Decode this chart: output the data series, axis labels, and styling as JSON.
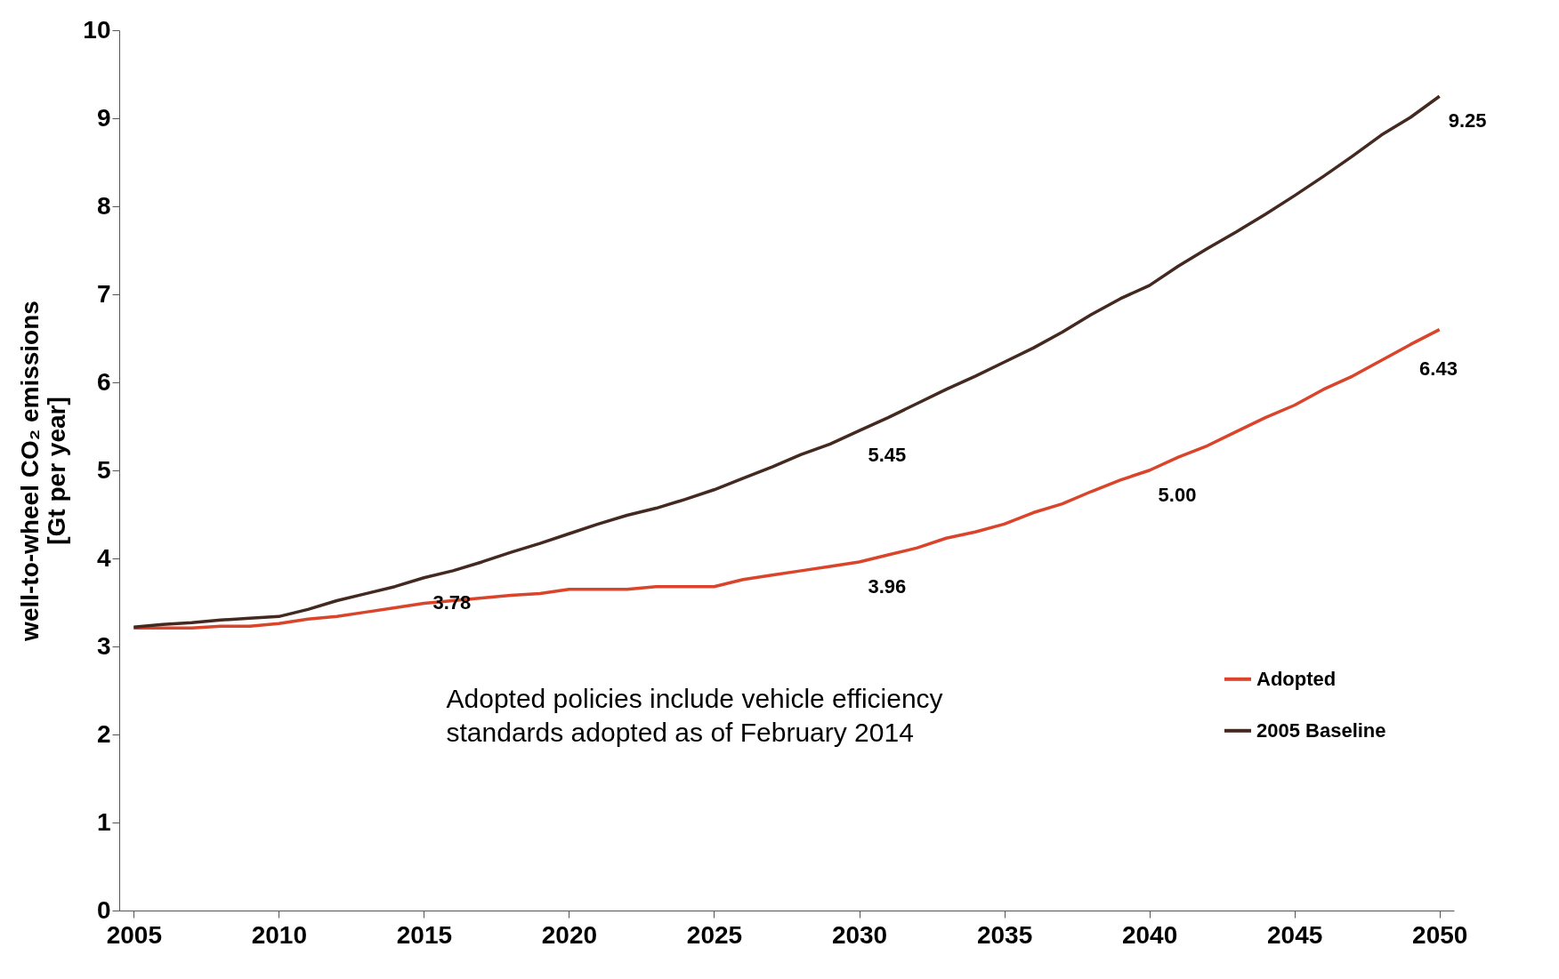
{
  "chart_data": {
    "type": "line",
    "ylabel": "well-to-wheel CO₂ emissions\n[Gt per year]",
    "x": [
      2005,
      2006,
      2007,
      2008,
      2009,
      2010,
      2011,
      2012,
      2013,
      2014,
      2015,
      2016,
      2017,
      2018,
      2019,
      2020,
      2021,
      2022,
      2023,
      2024,
      2025,
      2026,
      2027,
      2028,
      2029,
      2030,
      2031,
      2032,
      2033,
      2034,
      2035,
      2036,
      2037,
      2038,
      2039,
      2040,
      2041,
      2042,
      2043,
      2044,
      2045,
      2046,
      2047,
      2048,
      2049,
      2050
    ],
    "series": [
      {
        "name": "Adopted",
        "color": "#d9442a",
        "values": [
          3.21,
          3.21,
          3.21,
          3.23,
          3.23,
          3.26,
          3.31,
          3.34,
          3.39,
          3.44,
          3.49,
          3.52,
          3.55,
          3.58,
          3.6,
          3.65,
          3.65,
          3.65,
          3.68,
          3.68,
          3.68,
          3.76,
          3.81,
          3.86,
          3.91,
          3.96,
          4.04,
          4.12,
          4.23,
          4.3,
          4.39,
          4.52,
          4.62,
          4.76,
          4.89,
          5.0,
          5.15,
          5.28,
          5.44,
          5.6,
          5.74,
          5.92,
          6.07,
          6.25,
          6.43,
          6.6
        ]
      },
      {
        "name": "2005 Baseline",
        "color": "#43291f",
        "values": [
          3.22,
          3.25,
          3.27,
          3.3,
          3.32,
          3.34,
          3.42,
          3.52,
          3.6,
          3.68,
          3.78,
          3.86,
          3.96,
          4.07,
          4.17,
          4.28,
          4.39,
          4.49,
          4.57,
          4.67,
          4.78,
          4.91,
          5.04,
          5.18,
          5.3,
          5.45,
          5.6,
          5.76,
          5.92,
          6.07,
          6.23,
          6.39,
          6.57,
          6.77,
          6.95,
          7.1,
          7.32,
          7.52,
          7.71,
          7.91,
          8.12,
          8.34,
          8.57,
          8.81,
          9.01,
          9.25
        ]
      }
    ],
    "annotations": [
      {
        "text": "3.78",
        "x": 2015,
        "y": 3.78
      },
      {
        "text": "5.45",
        "x": 2030,
        "y": 5.45
      },
      {
        "text": "9.25",
        "x": 2050,
        "y": 9.25
      },
      {
        "text": "3.96",
        "x": 2030,
        "y": 3.96
      },
      {
        "text": "5.00",
        "x": 2040,
        "y": 5.0
      },
      {
        "text": "6.43",
        "x": 2049,
        "y": 6.43
      },
      "Adopted policies include vehicle efficiency\nstandards adopted as of February 2014"
    ],
    "xlim": [
      2004.5,
      2050.5
    ],
    "xticks": [
      2005,
      2010,
      2015,
      2020,
      2025,
      2030,
      2035,
      2040,
      2045,
      2050
    ],
    "ylim": [
      0,
      10
    ],
    "yticks": [
      0,
      1,
      2,
      3,
      4,
      5,
      6,
      7,
      8,
      9,
      10
    ],
    "grid": false,
    "legend": "right",
    "marker": "none",
    "line_style": "solid"
  }
}
